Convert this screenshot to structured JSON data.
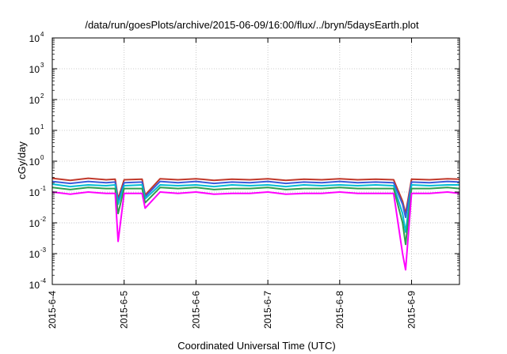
{
  "chart_data": {
    "type": "line",
    "title": "/data/run/goesPlots/archive/2015-06-09/16:00/flux/../bryn/5daysEarth.plot",
    "xlabel": "Coordinated Universal Time (UTC)",
    "ylabel": "cGy/day",
    "yscale": "log",
    "ylim": [
      0.0001,
      10000
    ],
    "xlim": [
      "2015-06-04 00:00",
      "2015-06-09 16:00"
    ],
    "grid": true,
    "x_ticks": [
      "2015-6-4",
      "2015-6-5",
      "2015-6-6",
      "2015-6-7",
      "2015-6-8",
      "2015-6-9"
    ],
    "y_ticks": [
      {
        "base": "10",
        "exp": "-4"
      },
      {
        "base": "10",
        "exp": "-3"
      },
      {
        "base": "10",
        "exp": "-2"
      },
      {
        "base": "10",
        "exp": "-1"
      },
      {
        "base": "10",
        "exp": "0"
      },
      {
        "base": "10",
        "exp": "1"
      },
      {
        "base": "10",
        "exp": "2"
      },
      {
        "base": "10",
        "exp": "3"
      },
      {
        "base": "10",
        "exp": "4"
      }
    ],
    "x": [
      "2015-06-04 00:00",
      "2015-06-04 06:00",
      "2015-06-04 12:00",
      "2015-06-04 18:00",
      "2015-06-04 21:00",
      "2015-06-04 22:00",
      "2015-06-05 00:00",
      "2015-06-05 06:00",
      "2015-06-05 07:00",
      "2015-06-05 12:00",
      "2015-06-05 18:00",
      "2015-06-06 00:00",
      "2015-06-06 06:00",
      "2015-06-06 12:00",
      "2015-06-06 18:00",
      "2015-06-07 00:00",
      "2015-06-07 06:00",
      "2015-06-07 12:00",
      "2015-06-07 18:00",
      "2015-06-08 00:00",
      "2015-06-08 06:00",
      "2015-06-08 12:00",
      "2015-06-08 18:00",
      "2015-06-08 21:00",
      "2015-06-08 22:00",
      "2015-06-09 00:00",
      "2015-06-09 06:00",
      "2015-06-09 12:00",
      "2015-06-09 16:00"
    ],
    "series": [
      {
        "color": "#c0392b",
        "values": [
          0.28,
          0.24,
          0.28,
          0.25,
          0.26,
          0.06,
          0.25,
          0.26,
          0.08,
          0.27,
          0.25,
          0.27,
          0.24,
          0.26,
          0.25,
          0.27,
          0.24,
          0.26,
          0.25,
          0.27,
          0.25,
          0.26,
          0.25,
          0.05,
          0.02,
          0.26,
          0.25,
          0.27,
          0.26
        ]
      },
      {
        "color": "#3b5bdb",
        "values": [
          0.22,
          0.19,
          0.22,
          0.2,
          0.21,
          0.05,
          0.2,
          0.21,
          0.07,
          0.22,
          0.2,
          0.22,
          0.19,
          0.21,
          0.2,
          0.22,
          0.19,
          0.21,
          0.2,
          0.22,
          0.2,
          0.21,
          0.2,
          0.04,
          0.015,
          0.21,
          0.2,
          0.22,
          0.21
        ]
      },
      {
        "color": "#00bcd4",
        "values": [
          0.18,
          0.15,
          0.17,
          0.16,
          0.17,
          0.04,
          0.16,
          0.17,
          0.06,
          0.17,
          0.16,
          0.17,
          0.15,
          0.17,
          0.16,
          0.17,
          0.15,
          0.17,
          0.16,
          0.17,
          0.16,
          0.17,
          0.16,
          0.02,
          0.005,
          0.17,
          0.16,
          0.17,
          0.17
        ]
      },
      {
        "color": "#2e9e4f",
        "values": [
          0.14,
          0.12,
          0.14,
          0.13,
          0.13,
          0.02,
          0.13,
          0.13,
          0.045,
          0.14,
          0.13,
          0.14,
          0.12,
          0.13,
          0.13,
          0.14,
          0.12,
          0.13,
          0.13,
          0.14,
          0.13,
          0.13,
          0.13,
          0.01,
          0.002,
          0.13,
          0.13,
          0.14,
          0.13
        ]
      },
      {
        "color": "#ff00ff",
        "values": [
          0.1,
          0.085,
          0.1,
          0.09,
          0.09,
          0.0025,
          0.09,
          0.09,
          0.03,
          0.1,
          0.09,
          0.1,
          0.085,
          0.09,
          0.09,
          0.1,
          0.085,
          0.09,
          0.09,
          0.1,
          0.09,
          0.09,
          0.09,
          0.001,
          0.0003,
          0.09,
          0.09,
          0.1,
          0.09
        ]
      }
    ]
  }
}
